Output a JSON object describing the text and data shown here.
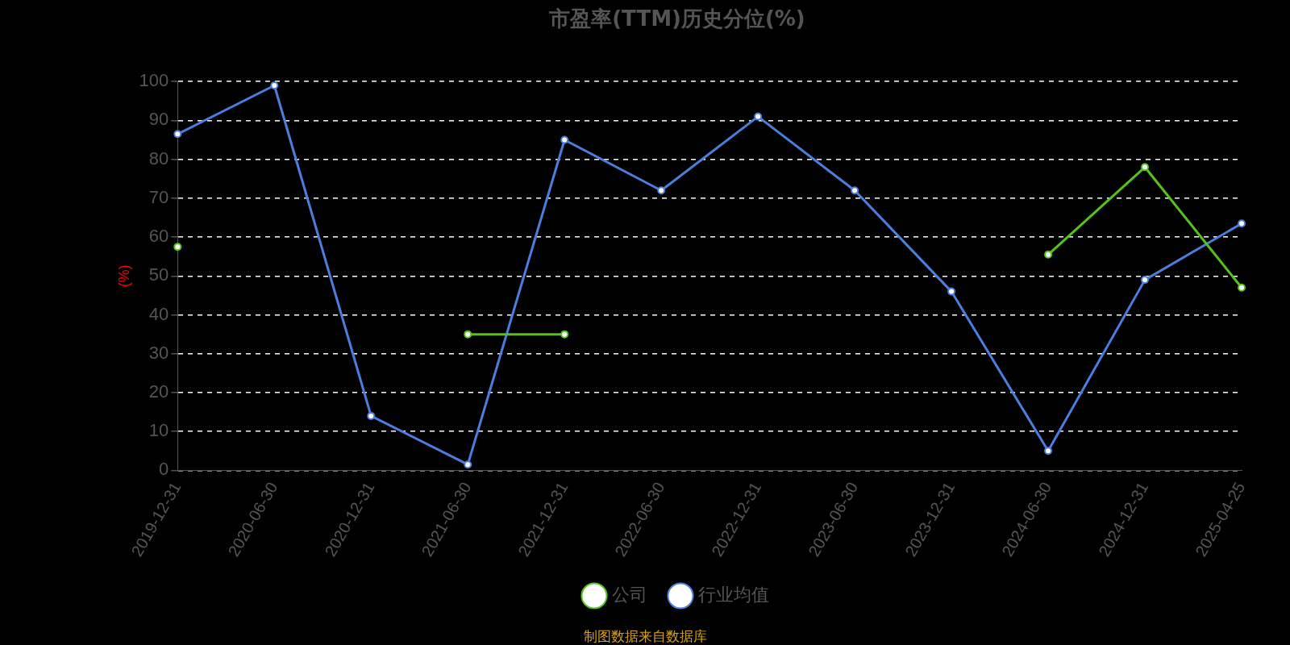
{
  "chart_data": {
    "type": "line",
    "title": "市盈率(TTM)历史分位(%)",
    "ylabel": "(%)",
    "categories": [
      "2019-12-31",
      "2020-06-30",
      "2020-12-31",
      "2021-06-30",
      "2021-12-31",
      "2022-06-30",
      "2022-12-31",
      "2023-06-30",
      "2023-12-31",
      "2024-06-30",
      "2024-12-31",
      "2025-04-25"
    ],
    "series": [
      {
        "name": "公司",
        "color": "#52c41a",
        "values": [
          57.5,
          null,
          null,
          35,
          35,
          null,
          null,
          null,
          null,
          55.5,
          78,
          47
        ]
      },
      {
        "name": "行业均值",
        "color": "#4a7fe0",
        "values": [
          86.5,
          99,
          14,
          1.5,
          85,
          72,
          91,
          72,
          46,
          5,
          49,
          63.5
        ]
      }
    ],
    "ylim": [
      0,
      100
    ],
    "yticks": [
      0,
      10,
      20,
      30,
      40,
      50,
      60,
      70,
      80,
      90,
      100
    ],
    "grid": "y",
    "legend": "bottom",
    "marker": "circle",
    "line_style": "solid",
    "annotations": [
      "制图数据来自数据库"
    ]
  }
}
